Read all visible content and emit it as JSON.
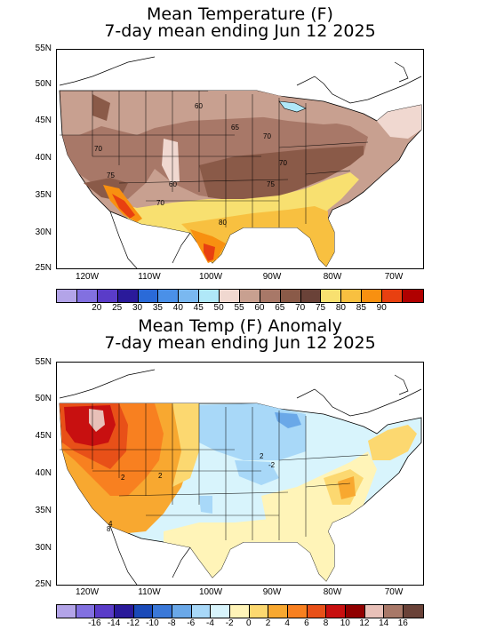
{
  "top": {
    "title_line1": "Mean Temperature (F)",
    "title_line2": "7-day mean ending Jun 12 2025",
    "lat_labels": [
      "55N",
      "50N",
      "45N",
      "40N",
      "35N",
      "30N",
      "25N"
    ],
    "lon_labels": [
      "120W",
      "110W",
      "100W",
      "90W",
      "80W",
      "70W"
    ],
    "contour_labels": [
      "60",
      "65",
      "70",
      "75",
      "70",
      "75",
      "70",
      "80",
      "60",
      "70"
    ],
    "colorbar": {
      "colors": [
        "#b3a4e8",
        "#8270e0",
        "#5a3cc8",
        "#2a1a9a",
        "#2a6ad8",
        "#4a90e8",
        "#7ab8f0",
        "#b0e8f8",
        "#f0d8d0",
        "#c8a090",
        "#a87868",
        "#8a5a48",
        "#6a4238",
        "#f8e070",
        "#f8c040",
        "#f89010",
        "#e84010",
        "#b00000"
      ],
      "labels": [
        "20",
        "25",
        "30",
        "35",
        "40",
        "45",
        "50",
        "55",
        "60",
        "65",
        "70",
        "75",
        "80",
        "85",
        "90"
      ]
    }
  },
  "bottom": {
    "title_line1": "Mean Temp (F) Anomaly",
    "title_line2": "7-day mean ending Jun 12 2025",
    "lat_labels": [
      "55N",
      "50N",
      "45N",
      "40N",
      "35N",
      "30N",
      "25N"
    ],
    "lon_labels": [
      "120W",
      "110W",
      "100W",
      "90W",
      "80W",
      "70W"
    ],
    "contour_labels": [
      "-2",
      "2",
      "2",
      "2",
      "4",
      "8"
    ],
    "colorbar": {
      "colors": [
        "#b3a4e8",
        "#8270e0",
        "#5a3cc8",
        "#2a1a9a",
        "#1a4ab8",
        "#3a78d8",
        "#6aa8e8",
        "#a8d8f8",
        "#d8f4fc",
        "#fff4b8",
        "#fcd870",
        "#f8a830",
        "#f88020",
        "#e85018",
        "#c81010",
        "#900000",
        "#e8c0b8",
        "#a87868",
        "#6a4238"
      ],
      "labels": [
        "-16",
        "-14",
        "-12",
        "-10",
        "-8",
        "-6",
        "-4",
        "-2",
        "0",
        "2",
        "4",
        "6",
        "8",
        "10",
        "12",
        "14",
        "16"
      ]
    }
  }
}
